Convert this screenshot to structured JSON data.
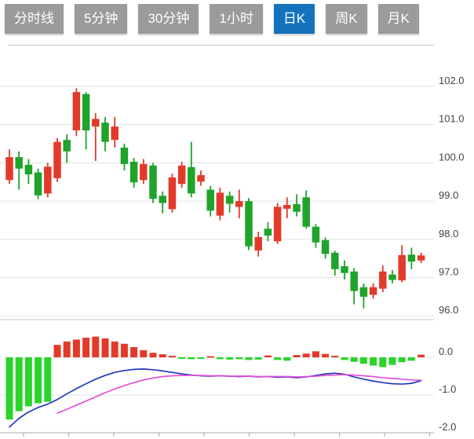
{
  "tabs": {
    "items": [
      {
        "label": "分时线",
        "active": false
      },
      {
        "label": "5分钟",
        "active": false
      },
      {
        "label": "30分钟",
        "active": false
      },
      {
        "label": "1小时",
        "active": false
      },
      {
        "label": "日K",
        "active": true
      },
      {
        "label": "周K",
        "active": false
      },
      {
        "label": "月K",
        "active": false
      }
    ]
  },
  "colors": {
    "up": "#e23a2a",
    "down": "#1fa32b",
    "macd_up": "#e23a2a",
    "macd_down": "#2bd42b",
    "dif_line": "#2438b8",
    "dea_line": "#e44fd7",
    "grid": "#e3e3e3",
    "border": "#c9c9c9",
    "axis": "#aaaaaa",
    "axis_label": "#444444",
    "tab_bg": "#9b9b9b",
    "tab_active_bg": "#1573be",
    "tab_text": "#ffffff"
  },
  "chart_data": {
    "type": "candlestick+macd",
    "main_panel": {
      "y_axis_labels": [
        "102.0",
        "101.0",
        "100.0",
        "99.0",
        "98.0",
        "97.0",
        "96.0"
      ],
      "y_values": [
        102,
        101,
        100,
        99,
        98,
        97,
        96
      ],
      "candles_ochl": [
        [
          99.55,
          100.15,
          100.35,
          99.45
        ],
        [
          100.15,
          99.85,
          100.3,
          99.3
        ],
        [
          99.95,
          99.7,
          100.1,
          99.45
        ],
        [
          99.75,
          99.15,
          99.85,
          99.05
        ],
        [
          99.2,
          99.9,
          100.0,
          99.1
        ],
        [
          99.6,
          100.55,
          100.65,
          99.5
        ],
        [
          100.6,
          100.3,
          100.75,
          100.0
        ],
        [
          100.85,
          101.85,
          101.95,
          100.7
        ],
        [
          101.8,
          100.85,
          101.85,
          100.35
        ],
        [
          100.95,
          101.15,
          101.3,
          100.05
        ],
        [
          101.05,
          100.55,
          101.2,
          100.3
        ],
        [
          100.6,
          100.95,
          101.2,
          100.4
        ],
        [
          100.4,
          99.97,
          100.5,
          99.8
        ],
        [
          100.03,
          99.49,
          100.13,
          99.35
        ],
        [
          99.55,
          99.97,
          100.1,
          99.45
        ],
        [
          99.93,
          99.06,
          100.0,
          98.95
        ],
        [
          99.14,
          98.95,
          99.25,
          98.68
        ],
        [
          98.79,
          99.62,
          99.72,
          98.7
        ],
        [
          99.45,
          99.93,
          100.03,
          99.35
        ],
        [
          99.89,
          99.2,
          100.55,
          99.1
        ],
        [
          99.51,
          99.68,
          99.8,
          99.4
        ],
        [
          99.3,
          98.75,
          99.4,
          98.6
        ],
        [
          98.62,
          99.22,
          99.35,
          98.5
        ],
        [
          99.14,
          98.93,
          99.25,
          98.7
        ],
        [
          98.85,
          99.0,
          99.3,
          98.55
        ],
        [
          99.0,
          97.82,
          99.08,
          97.72
        ],
        [
          97.71,
          98.06,
          98.2,
          97.55
        ],
        [
          98.28,
          98.1,
          98.45,
          97.95
        ],
        [
          97.95,
          98.85,
          98.95,
          97.88
        ],
        [
          98.8,
          98.9,
          99.1,
          98.55
        ],
        [
          98.92,
          98.72,
          99.18,
          98.6
        ],
        [
          99.1,
          98.33,
          99.28,
          98.28
        ],
        [
          98.33,
          97.92,
          98.4,
          97.78
        ],
        [
          97.98,
          97.62,
          98.05,
          97.5
        ],
        [
          97.65,
          97.22,
          97.7,
          97.05
        ],
        [
          97.3,
          97.12,
          97.45,
          96.95
        ],
        [
          97.16,
          96.65,
          97.25,
          96.3
        ],
        [
          96.75,
          96.5,
          96.85,
          96.2
        ],
        [
          96.55,
          96.75,
          96.85,
          96.45
        ],
        [
          96.71,
          97.16,
          97.32,
          96.62
        ],
        [
          97.08,
          96.94,
          97.2,
          96.85
        ],
        [
          96.93,
          97.59,
          97.85,
          96.88
        ],
        [
          97.6,
          97.42,
          97.78,
          97.22
        ],
        [
          97.45,
          97.58,
          97.65,
          97.38
        ]
      ]
    },
    "macd_panel": {
      "y_axis_labels": [
        "0.0",
        "-1.0",
        "-2.0"
      ],
      "y_values": [
        0,
        -1,
        -2
      ],
      "histogram": [
        -1.65,
        -1.43,
        -1.3,
        -1.22,
        -1.18,
        0.33,
        0.42,
        0.47,
        0.52,
        0.55,
        0.5,
        0.42,
        0.36,
        0.27,
        0.19,
        0.12,
        0.08,
        0.04,
        -0.04,
        -0.05,
        -0.04,
        0.03,
        -0.05,
        -0.06,
        -0.05,
        -0.07,
        -0.06,
        0.05,
        -0.07,
        -0.09,
        0.06,
        0.1,
        0.16,
        0.09,
        0.04,
        -0.07,
        -0.12,
        -0.17,
        -0.22,
        -0.26,
        -0.2,
        -0.13,
        -0.09,
        0.07
      ],
      "dif": [
        -1.85,
        -1.62,
        -1.45,
        -1.33,
        -1.24,
        -1.12,
        -0.97,
        -0.83,
        -0.7,
        -0.58,
        -0.48,
        -0.4,
        -0.35,
        -0.32,
        -0.31,
        -0.33,
        -0.36,
        -0.4,
        -0.44,
        -0.47,
        -0.49,
        -0.5,
        -0.49,
        -0.5,
        -0.51,
        -0.5,
        -0.52,
        -0.51,
        -0.53,
        -0.52,
        -0.54,
        -0.52,
        -0.48,
        -0.44,
        -0.42,
        -0.45,
        -0.52,
        -0.58,
        -0.63,
        -0.67,
        -0.7,
        -0.71,
        -0.69,
        -0.62
      ],
      "dea": [
        null,
        null,
        null,
        null,
        null,
        -1.48,
        -1.38,
        -1.27,
        -1.16,
        -1.05,
        -0.94,
        -0.84,
        -0.75,
        -0.67,
        -0.6,
        -0.55,
        -0.51,
        -0.49,
        -0.48,
        -0.48,
        -0.48,
        -0.49,
        -0.49,
        -0.5,
        -0.5,
        -0.5,
        -0.51,
        -0.51,
        -0.51,
        -0.51,
        -0.52,
        -0.51,
        -0.5,
        -0.48,
        -0.47,
        -0.46,
        -0.47,
        -0.49,
        -0.51,
        -0.54,
        -0.56,
        -0.58,
        -0.6,
        -0.61
      ]
    }
  }
}
